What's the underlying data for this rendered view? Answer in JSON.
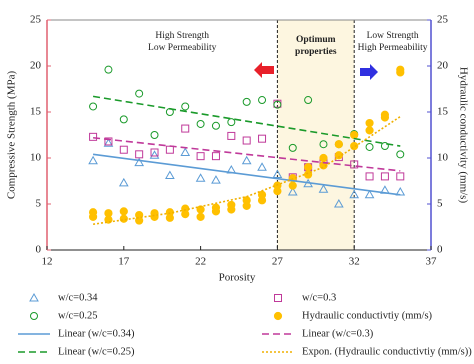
{
  "chart_data": {
    "type": "scatter",
    "xlabel": "Porosity",
    "ylabel": "Compressive Strength (MPa)",
    "y2label": "Hydraulic conductivity (mm/s)",
    "xlim": [
      12,
      37
    ],
    "xticks": [
      12,
      17,
      22,
      27,
      32,
      37
    ],
    "ylim": [
      0,
      25
    ],
    "yticks": [
      0,
      5,
      10,
      15,
      20,
      25
    ],
    "y2lim": [
      0,
      25
    ],
    "y2ticks": [
      0,
      5,
      10,
      15,
      20,
      25
    ],
    "y_axis_color": "#e06070",
    "y2_axis_color": "#5050d0",
    "region": {
      "x0": 27,
      "x1": 32,
      "color": "#fdf6e0",
      "label": [
        "Optimum",
        "properties"
      ]
    },
    "annotations": [
      {
        "lines": [
          "High Strength",
          "Low Permeability"
        ]
      },
      {
        "lines": [
          "Low Strength",
          "High Permeability"
        ]
      }
    ],
    "series": [
      {
        "name": "w/c=0.34",
        "kind": "scatter",
        "marker": "triangle",
        "color": "#5b9bd5",
        "x": [
          15,
          16,
          17,
          18,
          19,
          20,
          21,
          22,
          23,
          24,
          25,
          26,
          27,
          28,
          29,
          30,
          31,
          32,
          33,
          34,
          35
        ],
        "values": [
          9.7,
          11.6,
          7.3,
          9.5,
          10.3,
          8.1,
          10.6,
          7.8,
          7.6,
          8.7,
          9.7,
          9.0,
          8.2,
          6.3,
          7.2,
          6.6,
          5.0,
          6.0,
          6.0,
          6.5,
          6.3
        ]
      },
      {
        "name": "w/c=0.3",
        "kind": "scatter",
        "marker": "square",
        "color": "#c0399a",
        "x": [
          15,
          16,
          17,
          18,
          19,
          20,
          21,
          22,
          23,
          24,
          25,
          26,
          27,
          28,
          29,
          30,
          31,
          32,
          33,
          34,
          35
        ],
        "values": [
          12.3,
          11.8,
          10.9,
          10.4,
          10.6,
          10.9,
          13.2,
          10.2,
          10.2,
          12.4,
          11.9,
          12.1,
          15.9,
          7.9,
          9.0,
          9.5,
          10.1,
          9.3,
          8.0,
          8.0,
          8.0
        ]
      },
      {
        "name": "w/c=0.25",
        "kind": "scatter",
        "marker": "circle",
        "color": "#1a9a2a",
        "x": [
          15,
          16,
          17,
          18,
          19,
          20,
          21,
          22,
          23,
          24,
          25,
          26,
          27,
          28,
          29,
          30,
          31,
          32,
          33,
          34,
          35
        ],
        "values": [
          15.6,
          19.6,
          14.2,
          17.0,
          12.5,
          15.0,
          15.6,
          13.7,
          13.5,
          13.9,
          16.1,
          16.3,
          15.8,
          11.1,
          16.3,
          11.5,
          11.5,
          12.6,
          11.2,
          11.3,
          10.4
        ]
      },
      {
        "name": "Hydraulic conductivtiy (mm/s)",
        "kind": "scatter",
        "marker": "dot",
        "color": "#ffc000",
        "axis": "y2",
        "x": [
          15,
          15,
          16,
          16,
          17,
          17,
          18,
          18,
          19,
          19,
          20,
          20,
          21,
          21,
          22,
          22,
          23,
          23,
          24,
          24,
          25,
          25,
          26,
          26,
          27,
          27,
          28,
          28,
          29,
          29,
          30,
          30,
          31,
          31,
          32,
          32,
          33,
          33,
          34,
          34,
          35,
          35
        ],
        "values": [
          3.6,
          4.1,
          3.3,
          4.0,
          3.4,
          4.2,
          3.2,
          3.8,
          3.6,
          4.0,
          3.5,
          4.1,
          3.9,
          4.5,
          3.6,
          4.4,
          4.2,
          4.6,
          4.4,
          4.9,
          4.8,
          5.4,
          5.4,
          6.0,
          6.4,
          7.0,
          7.0,
          7.8,
          8.2,
          9.0,
          9.2,
          10.0,
          10.3,
          11.5,
          11.3,
          12.5,
          13.0,
          13.8,
          14.4,
          14.7,
          19.3,
          19.6
        ]
      },
      {
        "name": "Linear (w/c=0.34)",
        "kind": "line",
        "dash": "solid",
        "color": "#5b9bd5",
        "x": [
          15,
          35
        ],
        "values": [
          10.4,
          6.0
        ]
      },
      {
        "name": "Linear (w/c=0.3)",
        "kind": "line",
        "dash": "dashed",
        "color": "#c0399a",
        "x": [
          15,
          35
        ],
        "values": [
          12.2,
          8.6
        ]
      },
      {
        "name": "Linear (w/c=0.25)",
        "kind": "line",
        "dash": "dashed",
        "color": "#1a9a2a",
        "x": [
          15,
          35
        ],
        "values": [
          16.7,
          11.3
        ]
      },
      {
        "name": "Expon. (Hydraulic conductivtiy (mm/s))",
        "kind": "line",
        "dash": "dotted",
        "color": "#f0b000",
        "axis": "y2",
        "x": [
          15,
          20,
          25,
          30,
          35
        ],
        "values": [
          2.8,
          4.0,
          5.8,
          9.0,
          14.5
        ]
      }
    ]
  }
}
